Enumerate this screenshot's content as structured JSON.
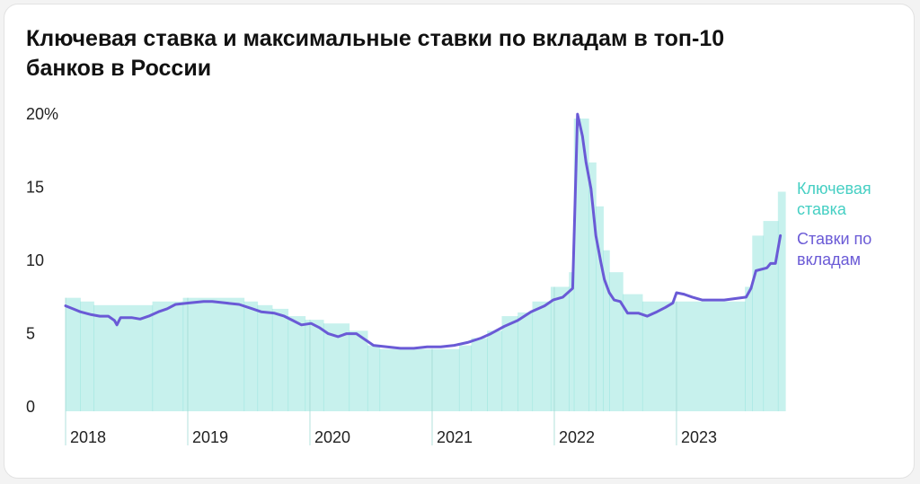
{
  "chart_data": {
    "type": "line",
    "title": "Ключевая ставка и максимальные ставки по вкладам в топ-10 банков в России",
    "xlim": [
      2018,
      2023.89
    ],
    "xticks": [
      2018,
      2019,
      2020,
      2021,
      2022,
      2023
    ],
    "ylim": [
      0,
      20
    ],
    "yticks": [
      0,
      5,
      10,
      15,
      {
        "value": 20,
        "label": "20%"
      }
    ],
    "series": [
      {
        "name": "Ключевая ставка",
        "type": "step-area",
        "color": "#45cfc3",
        "x": [
          2018.0,
          2018.12,
          2018.23,
          2018.71,
          2018.96,
          2019.46,
          2019.57,
          2019.69,
          2019.82,
          2019.96,
          2020.11,
          2020.32,
          2020.47,
          2020.57,
          2021.22,
          2021.32,
          2021.45,
          2021.57,
          2021.7,
          2021.82,
          2021.97,
          2022.12,
          2022.16,
          2022.28,
          2022.34,
          2022.4,
          2022.45,
          2022.56,
          2022.72,
          2023.56,
          2023.62,
          2023.71,
          2023.83
        ],
        "values": [
          7.75,
          7.5,
          7.25,
          7.5,
          7.75,
          7.5,
          7.25,
          7.0,
          6.5,
          6.25,
          6.0,
          5.5,
          4.5,
          4.25,
          4.5,
          5.0,
          5.5,
          6.5,
          6.75,
          7.5,
          8.5,
          9.5,
          20,
          17,
          14,
          11,
          9.5,
          8.0,
          7.5,
          8.5,
          12,
          13,
          15
        ]
      },
      {
        "name": "Ставки по вкладам",
        "type": "line",
        "color": "#6a5ad6",
        "x": [
          2018.0,
          2018.06,
          2018.12,
          2018.21,
          2018.28,
          2018.35,
          2018.4,
          2018.42,
          2018.45,
          2018.54,
          2018.61,
          2018.68,
          2018.76,
          2018.83,
          2018.9,
          2019.01,
          2019.13,
          2019.2,
          2019.31,
          2019.42,
          2019.53,
          2019.6,
          2019.71,
          2019.79,
          2019.86,
          2019.93,
          2020.01,
          2020.08,
          2020.15,
          2020.23,
          2020.3,
          2020.38,
          2020.45,
          2020.52,
          2020.63,
          2020.74,
          2020.85,
          2020.96,
          2021.07,
          2021.18,
          2021.29,
          2021.4,
          2021.48,
          2021.59,
          2021.7,
          2021.81,
          2021.92,
          2021.99,
          2022.07,
          2022.15,
          2022.19,
          2022.23,
          2022.26,
          2022.3,
          2022.34,
          2022.38,
          2022.41,
          2022.45,
          2022.49,
          2022.54,
          2022.6,
          2022.69,
          2022.76,
          2022.84,
          2022.91,
          2022.97,
          2023.0,
          2023.06,
          2023.13,
          2023.21,
          2023.39,
          2023.57,
          2023.61,
          2023.65,
          2023.74,
          2023.77,
          2023.81,
          2023.85
        ],
        "values": [
          7.2,
          7.0,
          6.8,
          6.6,
          6.5,
          6.5,
          6.2,
          5.9,
          6.4,
          6.4,
          6.3,
          6.5,
          6.8,
          7.0,
          7.3,
          7.4,
          7.5,
          7.5,
          7.4,
          7.3,
          7.0,
          6.8,
          6.7,
          6.5,
          6.2,
          5.9,
          6.0,
          5.7,
          5.3,
          5.1,
          5.3,
          5.3,
          4.9,
          4.5,
          4.4,
          4.3,
          4.3,
          4.4,
          4.4,
          4.5,
          4.7,
          5.0,
          5.3,
          5.8,
          6.2,
          6.8,
          7.2,
          7.6,
          7.8,
          8.4,
          20.3,
          18.8,
          17.0,
          15.2,
          12.0,
          10.2,
          9.0,
          8.1,
          7.6,
          7.5,
          6.7,
          6.7,
          6.5,
          6.8,
          7.1,
          7.4,
          8.1,
          8.0,
          7.8,
          7.6,
          7.6,
          7.8,
          8.4,
          9.6,
          9.8,
          10.1,
          10.1,
          12.0
        ]
      }
    ]
  }
}
